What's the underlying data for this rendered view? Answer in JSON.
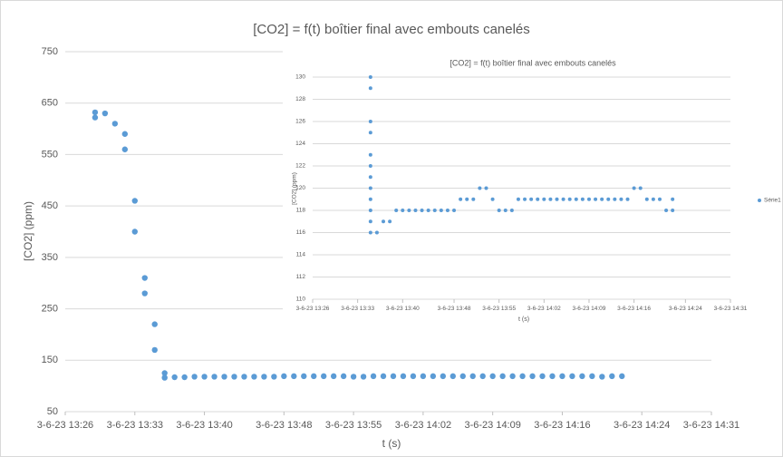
{
  "chart_data": [
    {
      "type": "scatter",
      "title": "[CO2] = f(t) boîtier final avec embouts canelés",
      "ylabel": "[CO2] (ppm)",
      "xlabel": "t (s)",
      "color": "#5b9bd5",
      "grid": true,
      "ylim": [
        50,
        750
      ],
      "yticks": [
        50,
        150,
        250,
        350,
        450,
        550,
        650,
        750
      ],
      "xlim": [
        "3-6-23 13:26",
        "3-6-23 14:31"
      ],
      "xticks": [
        "3-6-23 13:26",
        "3-6-23 13:33",
        "3-6-23 13:40",
        "3-6-23 13:48",
        "3-6-23 13:55",
        "3-6-23 14:02",
        "3-6-23 14:09",
        "3-6-23 14:16",
        "3-6-23 14:24",
        "3-6-23 14:31"
      ],
      "x": [
        "3-6-23 13:29",
        "3-6-23 13:29",
        "3-6-23 13:30",
        "3-6-23 13:31",
        "3-6-23 13:32",
        "3-6-23 13:32",
        "3-6-23 13:33",
        "3-6-23 13:33",
        "3-6-23 13:34",
        "3-6-23 13:34",
        "3-6-23 13:35",
        "3-6-23 13:35",
        "3-6-23 13:36",
        "3-6-23 13:36",
        "3-6-23 13:37",
        "3-6-23 13:38",
        "3-6-23 13:39",
        "3-6-23 13:40",
        "3-6-23 13:41",
        "3-6-23 13:42",
        "3-6-23 13:43",
        "3-6-23 13:44",
        "3-6-23 13:45",
        "3-6-23 13:46",
        "3-6-23 13:47",
        "3-6-23 13:48",
        "3-6-23 13:49",
        "3-6-23 13:50",
        "3-6-23 13:51",
        "3-6-23 13:52",
        "3-6-23 13:53",
        "3-6-23 13:54",
        "3-6-23 13:55",
        "3-6-23 13:56",
        "3-6-23 13:57",
        "3-6-23 13:58",
        "3-6-23 13:59",
        "3-6-23 14:00",
        "3-6-23 14:01",
        "3-6-23 14:02",
        "3-6-23 14:03",
        "3-6-23 14:04",
        "3-6-23 14:05",
        "3-6-23 14:06",
        "3-6-23 14:07",
        "3-6-23 14:08",
        "3-6-23 14:09",
        "3-6-23 14:10",
        "3-6-23 14:11",
        "3-6-23 14:12",
        "3-6-23 14:13",
        "3-6-23 14:14",
        "3-6-23 14:15",
        "3-6-23 14:16",
        "3-6-23 14:17",
        "3-6-23 14:18",
        "3-6-23 14:19",
        "3-6-23 14:20",
        "3-6-23 14:21",
        "3-6-23 14:22"
      ],
      "values": [
        632,
        622,
        630,
        610,
        590,
        560,
        460,
        400,
        310,
        280,
        220,
        170,
        125,
        116,
        117,
        117,
        118,
        118,
        118,
        118,
        118,
        118,
        118,
        118,
        118,
        119,
        119,
        119,
        119,
        119,
        119,
        119,
        118,
        118,
        119,
        119,
        119,
        119,
        119,
        119,
        119,
        119,
        119,
        119,
        119,
        119,
        119,
        119,
        119,
        119,
        119,
        119,
        119,
        119,
        119,
        119,
        119,
        118,
        119,
        119
      ]
    },
    {
      "type": "scatter",
      "title": "[CO2] = f(t) boîtier final avec embouts canelés",
      "ylabel": "[CO2] (ppm)",
      "xlabel": "t (s)",
      "grid": true,
      "legend": "right",
      "ylim": [
        110,
        130
      ],
      "yticks": [
        110,
        112,
        114,
        116,
        118,
        120,
        122,
        124,
        126,
        128,
        130
      ],
      "xlim": [
        "3-6-23 13:26",
        "3-6-23 14:31"
      ],
      "xticks": [
        "3-6-23 13:26",
        "3-6-23 13:33",
        "3-6-23 13:40",
        "3-6-23 13:48",
        "3-6-23 13:55",
        "3-6-23 14:02",
        "3-6-23 14:09",
        "3-6-23 14:16",
        "3-6-23 14:24",
        "3-6-23 14:31"
      ],
      "x": [
        "3-6-23 13:35",
        "3-6-23 13:35",
        "3-6-23 13:35",
        "3-6-23 13:35",
        "3-6-23 13:35",
        "3-6-23 13:35",
        "3-6-23 13:35",
        "3-6-23 13:35",
        "3-6-23 13:35",
        "3-6-23 13:35",
        "3-6-23 13:35",
        "3-6-23 13:35",
        "3-6-23 13:36",
        "3-6-23 13:37",
        "3-6-23 13:38",
        "3-6-23 13:39",
        "3-6-23 13:40",
        "3-6-23 13:41",
        "3-6-23 13:42",
        "3-6-23 13:43",
        "3-6-23 13:44",
        "3-6-23 13:45",
        "3-6-23 13:46",
        "3-6-23 13:47",
        "3-6-23 13:48",
        "3-6-23 13:49",
        "3-6-23 13:50",
        "3-6-23 13:51",
        "3-6-23 13:52",
        "3-6-23 13:53",
        "3-6-23 13:54",
        "3-6-23 13:55",
        "3-6-23 13:56",
        "3-6-23 13:57",
        "3-6-23 13:58",
        "3-6-23 13:59",
        "3-6-23 14:00",
        "3-6-23 14:01",
        "3-6-23 14:02",
        "3-6-23 14:03",
        "3-6-23 14:04",
        "3-6-23 14:05",
        "3-6-23 14:06",
        "3-6-23 14:07",
        "3-6-23 14:08",
        "3-6-23 14:09",
        "3-6-23 14:10",
        "3-6-23 14:11",
        "3-6-23 14:12",
        "3-6-23 14:13",
        "3-6-23 14:14",
        "3-6-23 14:15",
        "3-6-23 14:16",
        "3-6-23 14:17",
        "3-6-23 14:18",
        "3-6-23 14:19",
        "3-6-23 14:20",
        "3-6-23 14:21",
        "3-6-23 14:22",
        "3-6-23 14:22"
      ],
      "series": [
        {
          "name": "Série1",
          "color": "#5b9bd5",
          "values": [
            130,
            129,
            126,
            125,
            123,
            122,
            121,
            120,
            119,
            118,
            117,
            116,
            116,
            117,
            117,
            118,
            118,
            118,
            118,
            118,
            118,
            118,
            118,
            118,
            118,
            119,
            119,
            119,
            120,
            120,
            119,
            118,
            118,
            118,
            119,
            119,
            119,
            119,
            119,
            119,
            119,
            119,
            119,
            119,
            119,
            119,
            119,
            119,
            119,
            119,
            119,
            119,
            120,
            120,
            119,
            119,
            119,
            118,
            119,
            118
          ]
        }
      ]
    }
  ]
}
